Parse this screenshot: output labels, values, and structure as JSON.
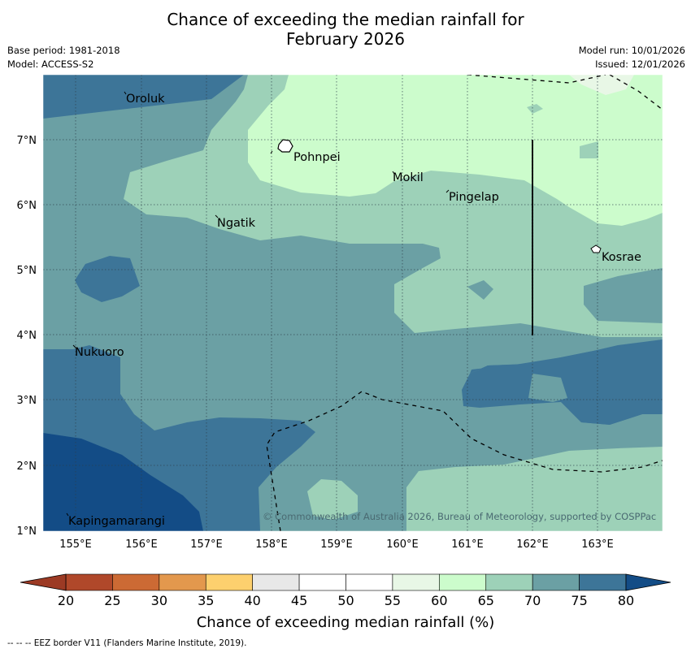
{
  "title": {
    "line1": "Chance of exceeding the median rainfall for",
    "line2": "February 2026"
  },
  "meta": {
    "base_period": "Base period: 1981-2018",
    "model": "Model: ACCESS-S2",
    "model_run": "Model run: 10/01/2026",
    "issued": "Issued: 12/01/2026"
  },
  "map": {
    "lon_labels": [
      "155°E",
      "156°E",
      "157°E",
      "158°E",
      "159°E",
      "160°E",
      "161°E",
      "162°E",
      "163°E"
    ],
    "lat_labels": [
      "1°N",
      "2°N",
      "3°N",
      "4°N",
      "5°N",
      "6°N",
      "7°N"
    ],
    "places": [
      "Oroluk",
      "Pohnpei",
      "Mokil",
      "Pingelap",
      "Ngatik",
      "Kosrae",
      "Nukuoro",
      "Kapingamarangi"
    ],
    "copyright": "© Commonwealth of Australia 2026, Bureau of Meteorology, supported by COSPPac"
  },
  "colorbar": {
    "ticks": [
      "20",
      "25",
      "30",
      "35",
      "40",
      "45",
      "50",
      "55",
      "60",
      "65",
      "70",
      "75",
      "80"
    ],
    "label": "Chance of exceeding median rainfall (%)",
    "colors": [
      "#b0482a",
      "#cc6a34",
      "#e3984d",
      "#fdd06e",
      "#e8e8e8",
      "#ffffff",
      "#ffffff",
      "#e8f7e6",
      "#ccfccc",
      "#9dd1b8",
      "#6ba0a4",
      "#3d7598"
    ],
    "low_extend": "#9c3a24",
    "high_extend": "#134c86"
  },
  "footnote": "--  --  -- EEZ border V11 (Flanders Marine Institute, 2019)."
}
